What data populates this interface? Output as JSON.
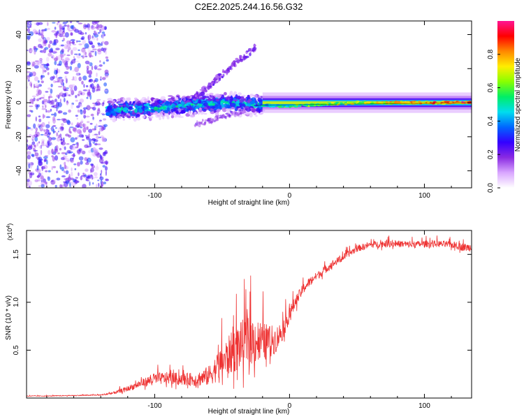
{
  "title": "C2E2.2025.244.16.56.G32",
  "chart_data": [
    {
      "type": "heatmap",
      "title": "C2E2.2025.244.16.56.G32",
      "xlabel": "Height of straight line (km)",
      "ylabel": "Frequency (Hz)",
      "xlim": [
        -195,
        135
      ],
      "ylim": [
        -50,
        48
      ],
      "xticks": [
        -100,
        0,
        100
      ],
      "xtick_labels": [
        "-100",
        "0",
        "100"
      ],
      "yticks": [
        -40,
        -20,
        0,
        20,
        40
      ],
      "ytick_labels": [
        "-40",
        "-20",
        "0",
        "20",
        "40"
      ],
      "colorbar": {
        "label": "Normalized spectral amplitude",
        "range": [
          0,
          1
        ],
        "ticks": [
          0.0,
          0.2,
          0.4,
          0.6,
          0.8
        ],
        "tick_labels": [
          "0.0",
          "0.2",
          "0.4",
          "0.6",
          "0.8"
        ],
        "colors": [
          "#ffffff",
          "#d9a6ff",
          "#8a2be2",
          "#3300ff",
          "#0066ff",
          "#00ddee",
          "#00ee66",
          "#88ff00",
          "#ffee00",
          "#ff8800",
          "#ff0000",
          "#ff1493"
        ]
      },
      "description_regions": [
        {
          "x_range": [
            -195,
            -135
          ],
          "freq_range": [
            -50,
            48
          ],
          "amplitude": 0.15
        },
        {
          "x_range": [
            -135,
            -20
          ],
          "freq_range": [
            -8,
            8
          ],
          "amplitude": 0.35
        },
        {
          "x_range": [
            -20,
            135
          ],
          "freq_range": [
            -2,
            2
          ],
          "amplitude": 0.7
        }
      ],
      "ridge_freq_at_x": [
        {
          "x": -130,
          "f": -4
        },
        {
          "x": -100,
          "f": -3
        },
        {
          "x": -70,
          "f": -1
        },
        {
          "x": -50,
          "f": 0
        },
        {
          "x": -30,
          "f": -1
        },
        {
          "x": -10,
          "f": -2
        },
        {
          "x": 0,
          "f": -2
        },
        {
          "x": 50,
          "f": 0
        },
        {
          "x": 135,
          "f": 0
        }
      ]
    },
    {
      "type": "line",
      "xlabel": "Height of straight line (km)",
      "ylabel": "SNR (10 * v/v)",
      "scale_label": "(x10",
      "scale_exponent": "4",
      "scale_suffix": ")",
      "xlim": [
        -195,
        135
      ],
      "ylim": [
        0,
        17500
      ],
      "xticks": [
        -100,
        0,
        100
      ],
      "xtick_labels": [
        "-100",
        "0",
        "100"
      ],
      "yticks": [
        5000,
        10000,
        15000
      ],
      "ytick_labels": [
        "0.5",
        "1.0",
        "1.5"
      ],
      "series": [
        {
          "name": "SNR",
          "color": "#ee3333",
          "x": [
            -195,
            -180,
            -160,
            -140,
            -130,
            -120,
            -110,
            -100,
            -90,
            -80,
            -70,
            -60,
            -55,
            -50,
            -45,
            -40,
            -35,
            -30,
            -25,
            -20,
            -15,
            -10,
            -5,
            0,
            5,
            10,
            15,
            20,
            25,
            30,
            40,
            50,
            60,
            70,
            80,
            90,
            100,
            110,
            120,
            130,
            135
          ],
          "y": [
            200,
            200,
            250,
            300,
            500,
            900,
            1400,
            1800,
            1900,
            1800,
            1700,
            2000,
            2600,
            3200,
            3800,
            4400,
            4900,
            5200,
            5300,
            5200,
            5400,
            5700,
            6800,
            8500,
            10000,
            11200,
            12000,
            12600,
            13100,
            13700,
            14600,
            15500,
            15900,
            16000,
            16000,
            15900,
            16000,
            16000,
            15900,
            15600,
            15600
          ],
          "noise": [
            50,
            50,
            60,
            80,
            200,
            400,
            600,
            900,
            900,
            900,
            1000,
            1500,
            2000,
            2600,
            3000,
            3400,
            3600,
            3800,
            3600,
            3000,
            2500,
            2000,
            1500,
            1200,
            900,
            800,
            700,
            600,
            600,
            600,
            500,
            500,
            500,
            500,
            500,
            500,
            500,
            500,
            500,
            600,
            600
          ]
        }
      ]
    }
  ]
}
